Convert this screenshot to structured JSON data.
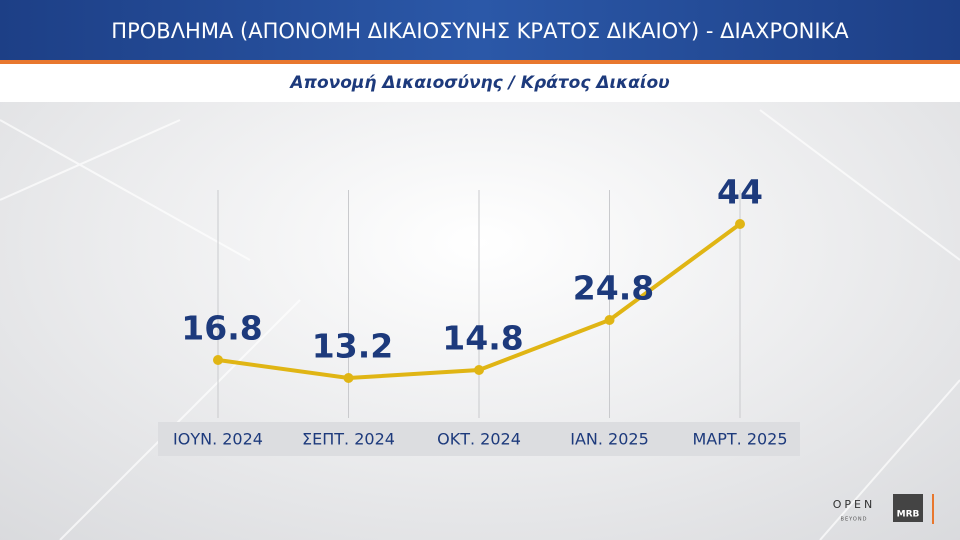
{
  "chart_data": {
    "type": "line",
    "title": "ΠΡΟΒΛΗΜΑ (ΑΠΟΝΟΜΗ ΔΙΚΑΙΟΣΥΝΗΣ ΚΡΑΤΟΣ ΔΙΚΑΙΟΥ) - ΔΙΑΧΡΟΝΙΚΑ",
    "subtitle": "Απονομή Δικαιοσύνης / Κράτος Δικαίου",
    "categories": [
      "ΙΟΥΝ. 2024",
      "ΣΕΠΤ. 2024",
      "ΟΚΤ. 2024",
      "ΙΑΝ. 2025",
      "ΜΑΡΤ. 2025"
    ],
    "values": [
      16.8,
      13.2,
      14.8,
      24.8,
      44
    ],
    "color": "#e0b514",
    "label_color": "#1d3a7c"
  },
  "branding": {
    "open": "OPEN",
    "beyond": "BEYOND",
    "mrb": "MRB"
  }
}
